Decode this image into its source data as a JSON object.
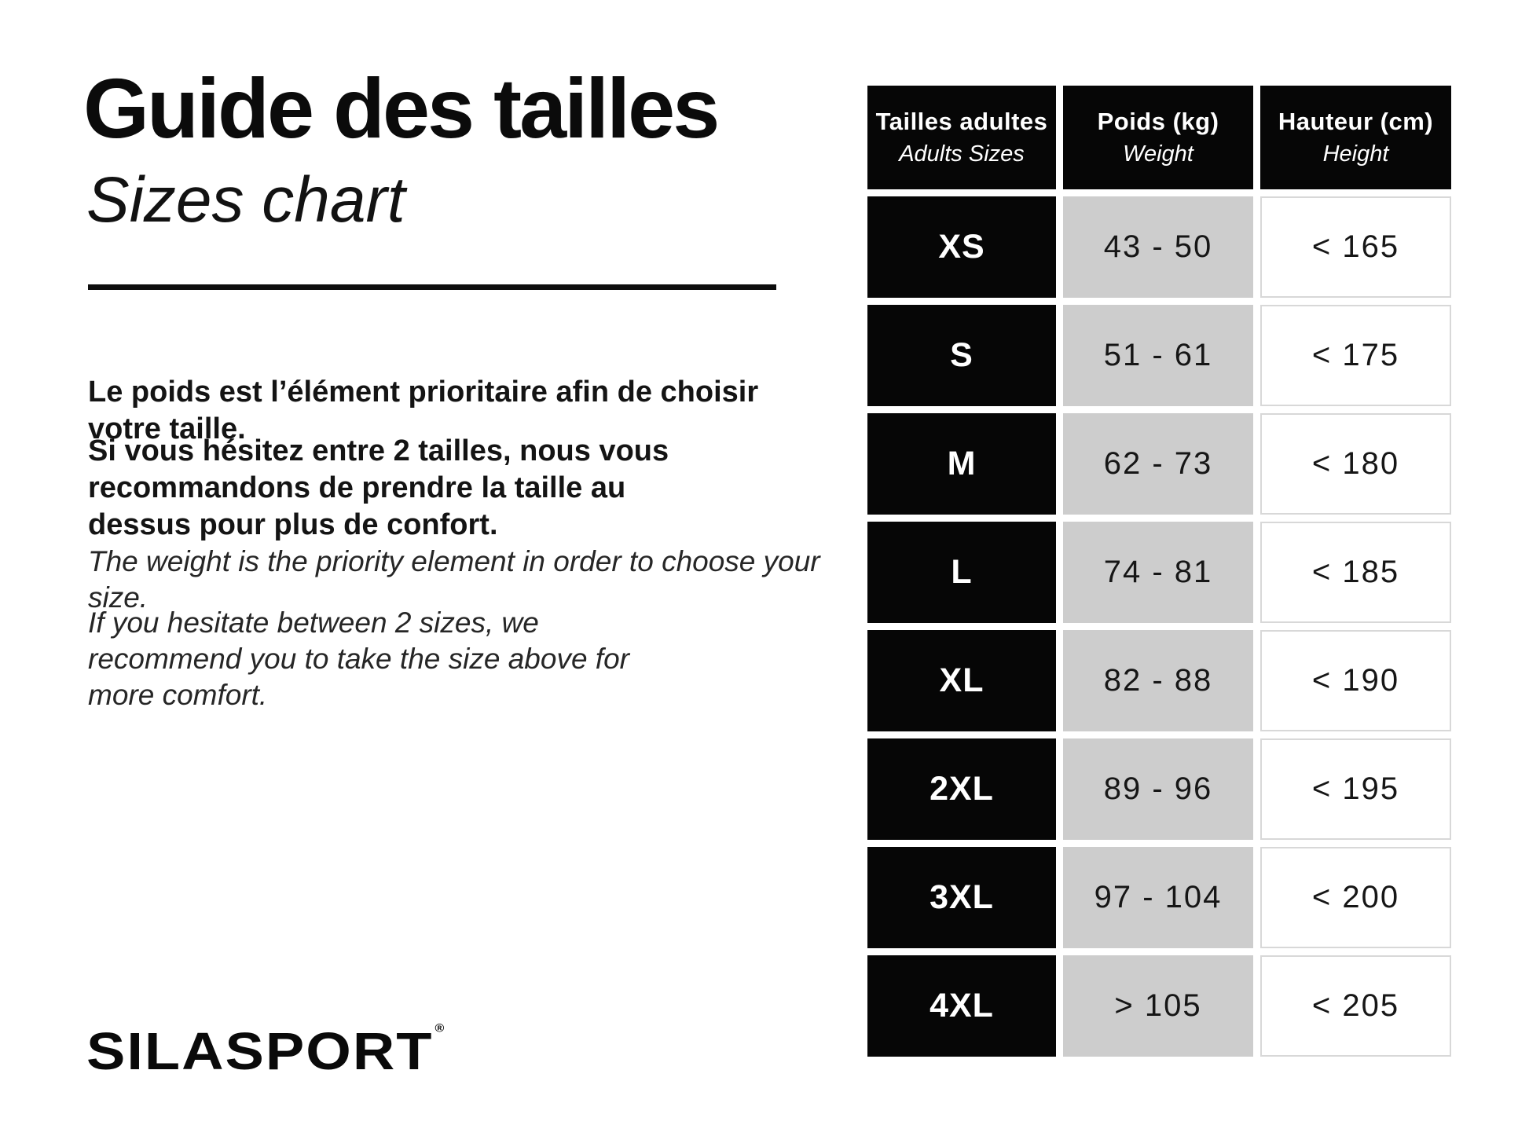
{
  "page": {
    "title_fr": "Guide des tailles",
    "title_en": "Sizes chart",
    "paragraphs_fr": [
      "Le poids est l’élément prioritaire afin de choisir votre taille.",
      "Si vous hésitez entre 2 tailles, nous vous recommandons de prendre la taille au dessus pour plus de confort."
    ],
    "paragraphs_en": [
      "The weight is the priority element in order to choose your size.",
      "If you hesitate between 2 sizes, we recommend you to take the size above for more comfort."
    ],
    "brand": "SILASPORT",
    "brand_mark": "®"
  },
  "table": {
    "headers": [
      {
        "fr": "Tailles adultes",
        "en": "Adults Sizes"
      },
      {
        "fr": "Poids (kg)",
        "en": "Weight"
      },
      {
        "fr": "Hauteur (cm)",
        "en": "Height"
      }
    ],
    "rows": [
      {
        "size": "XS",
        "weight": "43 - 50",
        "height": "< 165"
      },
      {
        "size": "S",
        "weight": "51 - 61",
        "height": "< 175"
      },
      {
        "size": "M",
        "weight": "62 - 73",
        "height": "< 180"
      },
      {
        "size": "L",
        "weight": "74 - 81",
        "height": "< 185"
      },
      {
        "size": "XL",
        "weight": "82 - 88",
        "height": "< 190"
      },
      {
        "size": "2XL",
        "weight": "89 - 96",
        "height": "< 195"
      },
      {
        "size": "3XL",
        "weight": "97 - 104",
        "height": "< 200"
      },
      {
        "size": "4XL",
        "weight": "> 105",
        "height": "< 205"
      }
    ]
  },
  "colors": {
    "cell_black": "#060606",
    "cell_gray": "#cdcdcd",
    "white_cell_border": "#d8d8d8",
    "text": "#101010"
  }
}
